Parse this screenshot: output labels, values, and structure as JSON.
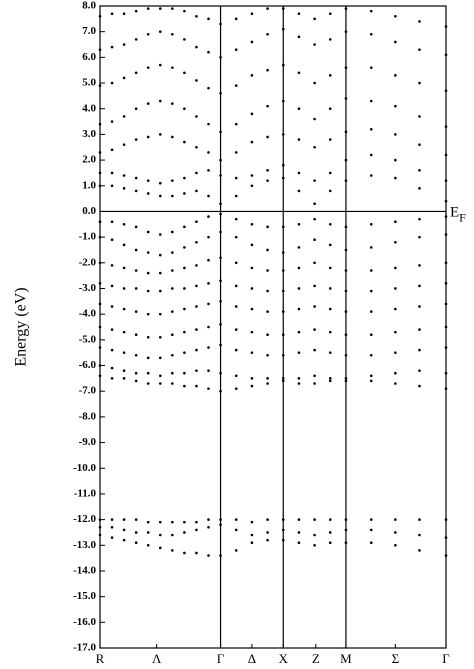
{
  "chart_data": {
    "type": "scatter",
    "ylabel": "Energy (eV)",
    "color": "#000000",
    "fermi_level": 0,
    "fermi_label": {
      "base": "E",
      "sub": "F"
    },
    "xlim": [
      0,
      2.87
    ],
    "xticks": [
      {
        "value": 0,
        "label": "R"
      },
      {
        "value": 0.47,
        "label": "Λ"
      },
      {
        "value": 1.0,
        "label": "Γ"
      },
      {
        "value": 1.26,
        "label": "Δ"
      },
      {
        "value": 1.52,
        "label": "X"
      },
      {
        "value": 1.79,
        "label": "Z"
      },
      {
        "value": 2.04,
        "label": "M"
      },
      {
        "value": 2.45,
        "label": "Σ"
      },
      {
        "value": 2.87,
        "label": "Γ"
      }
    ],
    "vlines": [
      1.0,
      1.52,
      2.04
    ],
    "ylim": [
      -17,
      8
    ],
    "yticks": [
      {
        "value": 8,
        "label": "8.0"
      },
      {
        "value": 7,
        "label": "7.0"
      },
      {
        "value": 6,
        "label": "6.0"
      },
      {
        "value": 5,
        "label": "5.0"
      },
      {
        "value": 4,
        "label": "4.0"
      },
      {
        "value": 3,
        "label": "3.0"
      },
      {
        "value": 2,
        "label": "2.0"
      },
      {
        "value": 1,
        "label": "1.0"
      },
      {
        "value": 0,
        "label": "0.0"
      },
      {
        "value": -1,
        "label": "-1.0"
      },
      {
        "value": -2,
        "label": "-2.0"
      },
      {
        "value": -3,
        "label": "-3.0"
      },
      {
        "value": -4,
        "label": "-4.0"
      },
      {
        "value": -5,
        "label": "-5.0"
      },
      {
        "value": -6,
        "label": "-6.0"
      },
      {
        "value": -7,
        "label": "-7.0"
      },
      {
        "value": -8,
        "label": "-8.0"
      },
      {
        "value": -9,
        "label": "-9.0"
      },
      {
        "value": -10,
        "label": "-10.0"
      },
      {
        "value": -11,
        "label": "-11.0"
      },
      {
        "value": -12,
        "label": "-12.0"
      },
      {
        "value": -13,
        "label": "-13.0"
      },
      {
        "value": -14,
        "label": "-14.0"
      },
      {
        "value": -15,
        "label": "-15.0"
      },
      {
        "value": -16,
        "label": "-16.0"
      },
      {
        "value": -17,
        "label": "-17.0"
      }
    ],
    "x": [
      0,
      0.1,
      0.2,
      0.3,
      0.4,
      0.5,
      0.6,
      0.7,
      0.8,
      0.9,
      1.0,
      1.13,
      1.26,
      1.39,
      1.52,
      1.65,
      1.78,
      1.91,
      2.04,
      2.25,
      2.45,
      2.65,
      2.87
    ],
    "series": [
      {
        "values": [
          1.0,
          1.0,
          0.9,
          0.8,
          0.7,
          0.6,
          0.6,
          0.7,
          0.8,
          0.6,
          0.3,
          0.6,
          1.0,
          1.2,
          1.3,
          0.8,
          0.3,
          0.8,
          1.2,
          1.4,
          1.3,
          0.9,
          0.4
        ]
      },
      {
        "values": [
          1.5,
          1.5,
          1.4,
          1.3,
          1.2,
          1.1,
          1.2,
          1.3,
          1.5,
          1.6,
          1.4,
          1.3,
          1.4,
          1.6,
          1.8,
          1.5,
          1.2,
          1.5,
          2.0,
          2.2,
          2.0,
          1.6,
          1.2
        ]
      },
      {
        "values": [
          2.3,
          2.4,
          2.6,
          2.8,
          2.9,
          3.0,
          2.9,
          2.7,
          2.5,
          2.3,
          2.0,
          2.3,
          2.7,
          2.9,
          3.0,
          2.8,
          2.5,
          2.8,
          3.1,
          3.2,
          3.0,
          2.6,
          2.2
        ]
      },
      {
        "values": [
          3.4,
          3.5,
          3.7,
          4.0,
          4.2,
          4.3,
          4.2,
          4.0,
          3.7,
          3.4,
          3.1,
          3.4,
          3.8,
          4.1,
          4.3,
          4.0,
          3.6,
          4.0,
          4.4,
          4.3,
          4.1,
          3.7,
          3.3
        ]
      },
      {
        "values": [
          4.9,
          5.0,
          5.2,
          5.4,
          5.6,
          5.7,
          5.6,
          5.4,
          5.1,
          4.8,
          4.6,
          4.9,
          5.3,
          5.5,
          5.7,
          5.4,
          5.0,
          5.3,
          5.6,
          5.6,
          5.3,
          5.0,
          4.7
        ]
      },
      {
        "values": [
          6.3,
          6.4,
          6.5,
          6.7,
          6.9,
          7.0,
          6.9,
          6.7,
          6.4,
          6.2,
          6.0,
          6.3,
          6.6,
          6.9,
          7.1,
          6.8,
          6.5,
          6.7,
          7.0,
          6.9,
          6.6,
          6.3,
          6.1
        ]
      },
      {
        "values": [
          7.6,
          7.7,
          7.7,
          7.8,
          7.9,
          7.9,
          7.9,
          7.8,
          7.6,
          7.5,
          7.3,
          7.5,
          7.7,
          7.9,
          7.9,
          7.7,
          7.5,
          7.7,
          7.9,
          7.8,
          7.6,
          7.4,
          7.2
        ]
      },
      {
        "values": [
          -0.4,
          -0.4,
          -0.5,
          -0.6,
          -0.8,
          -0.9,
          -0.8,
          -0.6,
          -0.4,
          -0.2,
          -0.1,
          -0.3,
          -0.5,
          -0.6,
          -0.6,
          -0.5,
          -0.3,
          -0.5,
          -0.6,
          -0.5,
          -0.4,
          -0.3,
          -0.2
        ]
      },
      {
        "values": [
          -1.0,
          -1.1,
          -1.3,
          -1.5,
          -1.6,
          -1.7,
          -1.6,
          -1.4,
          -1.2,
          -1.0,
          -0.8,
          -1.0,
          -1.3,
          -1.5,
          -1.6,
          -1.4,
          -1.1,
          -1.3,
          -1.5,
          -1.4,
          -1.2,
          -1.0,
          -0.9
        ]
      },
      {
        "values": [
          -2.0,
          -2.1,
          -2.2,
          -2.3,
          -2.4,
          -2.4,
          -2.3,
          -2.2,
          -2.1,
          -1.9,
          -1.8,
          -2.0,
          -2.2,
          -2.3,
          -2.3,
          -2.2,
          -2.0,
          -2.2,
          -2.3,
          -2.3,
          -2.2,
          -2.1,
          -2.0
        ]
      },
      {
        "values": [
          -2.8,
          -2.9,
          -3.0,
          -3.0,
          -3.1,
          -3.1,
          -3.0,
          -3.0,
          -2.9,
          -2.8,
          -2.7,
          -2.9,
          -3.0,
          -3.1,
          -3.1,
          -3.0,
          -2.9,
          -3.0,
          -3.1,
          -3.1,
          -3.0,
          -2.9,
          -2.8
        ]
      },
      {
        "values": [
          -3.6,
          -3.7,
          -3.8,
          -3.9,
          -4.0,
          -4.0,
          -3.9,
          -3.8,
          -3.7,
          -3.6,
          -3.5,
          -3.7,
          -3.8,
          -3.9,
          -3.9,
          -3.8,
          -3.7,
          -3.8,
          -3.9,
          -3.9,
          -3.8,
          -3.7,
          -3.6
        ]
      },
      {
        "values": [
          -4.5,
          -4.6,
          -4.7,
          -4.8,
          -4.9,
          -4.9,
          -4.8,
          -4.7,
          -4.6,
          -4.5,
          -4.4,
          -4.6,
          -4.7,
          -4.8,
          -4.8,
          -4.7,
          -4.6,
          -4.7,
          -4.8,
          -4.8,
          -4.7,
          -4.6,
          -4.5
        ]
      },
      {
        "values": [
          -5.3,
          -5.4,
          -5.5,
          -5.6,
          -5.7,
          -5.7,
          -5.6,
          -5.5,
          -5.4,
          -5.3,
          -5.2,
          -5.4,
          -5.5,
          -5.6,
          -5.6,
          -5.5,
          -5.4,
          -5.5,
          -5.6,
          -5.6,
          -5.5,
          -5.4,
          -5.3
        ]
      },
      {
        "values": [
          -6.0,
          -6.1,
          -6.2,
          -6.3,
          -6.3,
          -6.4,
          -6.3,
          -6.3,
          -6.2,
          -6.2,
          -6.3,
          -6.4,
          -6.5,
          -6.5,
          -6.5,
          -6.5,
          -6.4,
          -6.5,
          -6.5,
          -6.4,
          -6.3,
          -6.2,
          -6.3
        ]
      },
      {
        "values": [
          -6.4,
          -6.5,
          -6.5,
          -6.6,
          -6.7,
          -6.7,
          -6.7,
          -6.8,
          -6.8,
          -6.9,
          -7.0,
          -6.9,
          -6.8,
          -6.7,
          -6.6,
          -6.7,
          -6.7,
          -6.6,
          -6.6,
          -6.6,
          -6.7,
          -6.8,
          -6.9
        ]
      },
      {
        "values": [
          -12.0,
          -12.0,
          -12.0,
          -12.0,
          -12.1,
          -12.1,
          -12.1,
          -12.1,
          -12.1,
          -12.0,
          -12.0,
          -12.0,
          -12.1,
          -12.0,
          -12.0,
          -12.0,
          -12.0,
          -12.0,
          -12.0,
          -12.0,
          -12.0,
          -12.0,
          -12.0
        ]
      },
      {
        "values": [
          -12.3,
          -12.3,
          -12.4,
          -12.5,
          -12.5,
          -12.6,
          -12.6,
          -12.5,
          -12.4,
          -12.3,
          -12.2,
          -12.4,
          -12.6,
          -12.5,
          -12.4,
          -12.5,
          -12.6,
          -12.5,
          -12.4,
          -12.4,
          -12.5,
          -12.6,
          -12.7
        ]
      },
      {
        "values": [
          -12.6,
          -12.7,
          -12.8,
          -12.9,
          -13.0,
          -13.1,
          -13.2,
          -13.3,
          -13.3,
          -13.4,
          -13.4,
          -13.2,
          -12.9,
          -12.8,
          -12.8,
          -12.9,
          -13.0,
          -12.9,
          -12.9,
          -12.9,
          -13.0,
          -13.2,
          -13.4
        ]
      }
    ]
  }
}
